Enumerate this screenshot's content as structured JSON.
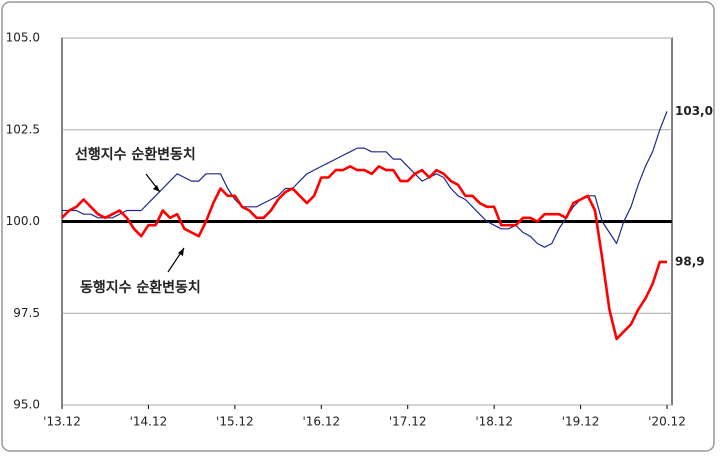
{
  "chart_data": {
    "type": "line",
    "categories": [
      "'13.12",
      null,
      null,
      null,
      null,
      null,
      null,
      null,
      null,
      null,
      null,
      null,
      "'14.12",
      null,
      null,
      null,
      null,
      null,
      null,
      null,
      null,
      null,
      null,
      null,
      "'15.12",
      null,
      null,
      null,
      null,
      null,
      null,
      null,
      null,
      null,
      null,
      null,
      "'16.12",
      null,
      null,
      null,
      null,
      null,
      null,
      null,
      null,
      null,
      null,
      null,
      "'17.12",
      null,
      null,
      null,
      null,
      null,
      null,
      null,
      null,
      null,
      null,
      null,
      "'18.12",
      null,
      null,
      null,
      null,
      null,
      null,
      null,
      null,
      null,
      null,
      null,
      "'19.12",
      null,
      null,
      null,
      null,
      null,
      null,
      null,
      null,
      null,
      null,
      null,
      "'20.12"
    ],
    "series": [
      {
        "name": "선행지수 순환변동치",
        "color": "#1f2a8c",
        "width": 1.2,
        "values": [
          100.3,
          100.3,
          100.3,
          100.2,
          100.2,
          100.1,
          100.1,
          100.1,
          100.2,
          100.3,
          100.3,
          100.3,
          100.5,
          100.7,
          100.9,
          101.1,
          101.3,
          101.2,
          101.1,
          101.1,
          101.3,
          101.3,
          101.3,
          100.9,
          100.6,
          100.4,
          100.4,
          100.4,
          100.5,
          100.6,
          100.7,
          100.9,
          100.9,
          101.1,
          101.3,
          101.4,
          101.5,
          101.6,
          101.7,
          101.8,
          101.9,
          102.0,
          102.0,
          101.9,
          101.9,
          101.9,
          101.7,
          101.7,
          101.5,
          101.3,
          101.1,
          101.2,
          101.3,
          101.2,
          100.9,
          100.7,
          100.6,
          100.4,
          100.2,
          100.0,
          99.9,
          99.8,
          99.8,
          99.9,
          99.7,
          99.6,
          99.4,
          99.3,
          99.4,
          99.8,
          100.1,
          100.4,
          100.6,
          100.7,
          100.7,
          100.0,
          99.7,
          99.4,
          100.0,
          100.4,
          101.0,
          101.5,
          101.9,
          102.5,
          103.0
        ],
        "value_labels": [
          null,
          null,
          null,
          null,
          null,
          null,
          null,
          null,
          null,
          null,
          null,
          null,
          null,
          null,
          null,
          null,
          null,
          null,
          null,
          null,
          null,
          null,
          null,
          null,
          null,
          null,
          null,
          null,
          null,
          null,
          null,
          null,
          null,
          null,
          null,
          null,
          null,
          null,
          null,
          null,
          null,
          null,
          null,
          null,
          null,
          null,
          null,
          null,
          null,
          null,
          null,
          null,
          null,
          null,
          null,
          null,
          null,
          null,
          null,
          null,
          null,
          null,
          null,
          null,
          null,
          null,
          null,
          null,
          null,
          null,
          null,
          null,
          null,
          null,
          null,
          null,
          null,
          null,
          null,
          null,
          null,
          null,
          null,
          null,
          "103,0"
        ]
      },
      {
        "name": "동행지수 순환변동치",
        "color": "#ff0000",
        "width": 2.6,
        "values": [
          100.1,
          100.3,
          100.4,
          100.6,
          100.4,
          100.2,
          100.1,
          100.2,
          100.3,
          100.1,
          99.8,
          99.6,
          99.9,
          99.9,
          100.3,
          100.1,
          100.2,
          99.8,
          99.7,
          99.6,
          100.0,
          100.5,
          100.9,
          100.7,
          100.7,
          100.4,
          100.3,
          100.1,
          100.1,
          100.3,
          100.6,
          100.8,
          100.9,
          100.7,
          100.5,
          100.7,
          101.2,
          101.2,
          101.4,
          101.4,
          101.5,
          101.4,
          101.4,
          101.3,
          101.5,
          101.4,
          101.4,
          101.1,
          101.1,
          101.3,
          101.4,
          101.2,
          101.4,
          101.3,
          101.1,
          101.0,
          100.7,
          100.7,
          100.5,
          100.4,
          100.4,
          99.9,
          99.9,
          99.9,
          100.1,
          100.1,
          100.0,
          100.2,
          100.2,
          100.2,
          100.1,
          100.5,
          100.6,
          100.7,
          100.3,
          99.0,
          97.6,
          96.8,
          97.0,
          97.2,
          97.6,
          97.9,
          98.3,
          98.9,
          98.9
        ],
        "value_labels": [
          null,
          null,
          null,
          null,
          null,
          null,
          null,
          null,
          null,
          null,
          null,
          null,
          null,
          null,
          null,
          null,
          null,
          null,
          null,
          null,
          null,
          null,
          null,
          null,
          null,
          null,
          null,
          null,
          null,
          null,
          null,
          null,
          null,
          null,
          null,
          null,
          null,
          null,
          null,
          null,
          null,
          null,
          null,
          null,
          null,
          null,
          null,
          null,
          null,
          null,
          null,
          null,
          null,
          null,
          null,
          null,
          null,
          null,
          null,
          null,
          null,
          null,
          null,
          null,
          null,
          null,
          null,
          null,
          null,
          null,
          null,
          null,
          null,
          null,
          null,
          null,
          null,
          null,
          null,
          null,
          null,
          null,
          null,
          null,
          "98,9"
        ]
      }
    ],
    "ylim": [
      95,
      105
    ],
    "yticks": [
      {
        "value": 95,
        "label": "95.0"
      },
      97.5,
      {
        "value": 100,
        "label": "100.0"
      },
      102.5,
      {
        "value": 105,
        "label": "105.0"
      }
    ],
    "reference_line": 100,
    "grid": true
  }
}
